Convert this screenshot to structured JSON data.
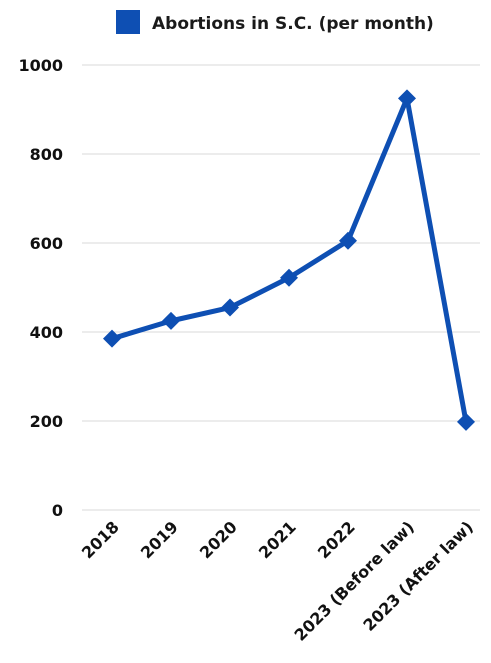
{
  "chart_data": {
    "type": "line",
    "categories": [
      "2018",
      "2019",
      "2020",
      "2021",
      "2022",
      "2023 (Before law)",
      "2023 (After law)"
    ],
    "series": [
      {
        "name": "Abortions in S.C. (per month)",
        "values": [
          385,
          425,
          455,
          522,
          605,
          925,
          198
        ]
      }
    ],
    "title": "",
    "xlabel": "",
    "ylabel": "",
    "ylim": [
      0,
      1000
    ],
    "yticks": [
      0,
      200,
      400,
      600,
      800,
      1000
    ],
    "grid": true,
    "legend_position": "top",
    "colors": {
      "series": "#0e4fb3",
      "grid": "#d9d9d9",
      "text": "#111111"
    }
  }
}
